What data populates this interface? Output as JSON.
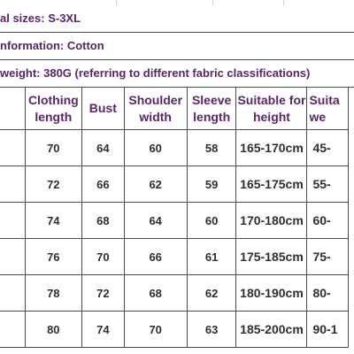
{
  "info": {
    "sizes": "al sizes: S-3XL",
    "material": "nformation: Cotton",
    "weight": "weight: 380G (referring to different fabric classifications)"
  },
  "table": {
    "headers": [
      "Clothing length",
      "Bust",
      "Shoulder width",
      "Sleeve length",
      "Suitable for height",
      "Suita we"
    ],
    "rows": [
      [
        "70",
        "64",
        "60",
        "58",
        "165-170cm",
        "45-"
      ],
      [
        "72",
        "66",
        "62",
        "59",
        "165-175cm",
        "55-"
      ],
      [
        "74",
        "68",
        "64",
        "60",
        "170-180cm",
        "60-"
      ],
      [
        "76",
        "70",
        "66",
        "61",
        "175-185cm",
        "75-"
      ],
      [
        "78",
        "72",
        "68",
        "62",
        "180-190cm",
        "80-"
      ],
      [
        "80",
        "74",
        "70",
        "63",
        "185-200cm",
        "90-1"
      ]
    ]
  }
}
